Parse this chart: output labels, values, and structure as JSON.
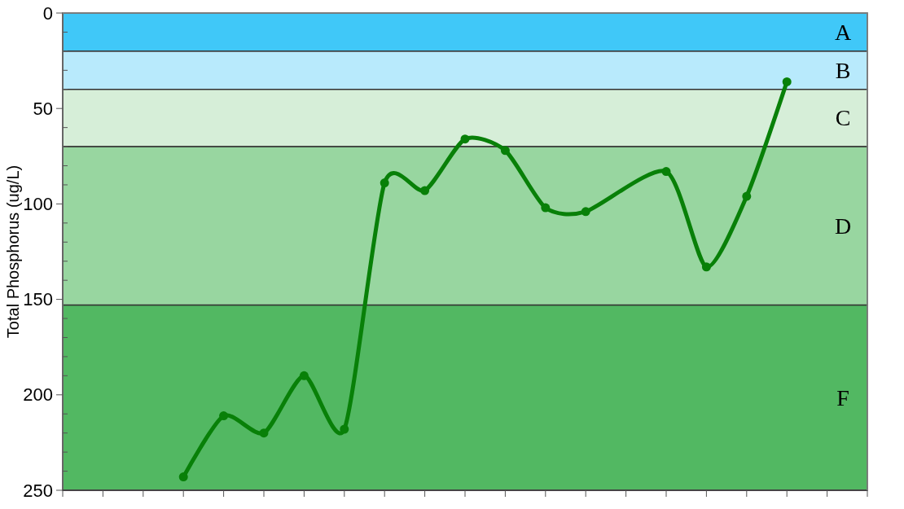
{
  "chart_data": {
    "type": "line",
    "ylabel": "Total Phosphorus (ug/L)",
    "categories": [
      null,
      null,
      null,
      null,
      null,
      null,
      null,
      null,
      null,
      null,
      null,
      null,
      null,
      null,
      null,
      null,
      null,
      null,
      null,
      null,
      null
    ],
    "series": [
      {
        "color": "#088008",
        "values": [
          null,
          null,
          null,
          243,
          211,
          220,
          190,
          218,
          89,
          93,
          66,
          72,
          102,
          104,
          null,
          83,
          133,
          96,
          36,
          null,
          null
        ]
      }
    ],
    "ylim": [
      250,
      0
    ],
    "yticks": [
      0,
      {
        "value": 10,
        "label": null
      },
      {
        "value": 20,
        "label": null
      },
      {
        "value": 30,
        "label": null
      },
      {
        "value": 40,
        "label": null
      },
      50,
      {
        "value": 60,
        "label": null
      },
      {
        "value": 70,
        "label": null
      },
      {
        "value": 80,
        "label": null
      },
      {
        "value": 90,
        "label": null
      },
      100,
      {
        "value": 110,
        "label": null
      },
      {
        "value": 120,
        "label": null
      },
      {
        "value": 130,
        "label": null
      },
      {
        "value": 140,
        "label": null
      },
      150,
      {
        "value": 160,
        "label": null
      },
      {
        "value": 170,
        "label": null
      },
      {
        "value": 180,
        "label": null
      },
      {
        "value": 190,
        "label": null
      },
      200,
      {
        "value": 210,
        "label": null
      },
      {
        "value": 220,
        "label": null
      },
      {
        "value": 230,
        "label": null
      },
      {
        "value": 240,
        "label": null
      },
      250
    ],
    "bands": [
      {
        "axis": "y",
        "from": 0,
        "to": 20,
        "label": "A",
        "color": "#40c8f8"
      },
      {
        "axis": "y",
        "from": 20,
        "to": 40,
        "label": "B",
        "color": "#b8eafc"
      },
      {
        "axis": "y",
        "from": 40,
        "to": 70,
        "label": "C",
        "color": "#d6eed8"
      },
      {
        "axis": "y",
        "from": 70,
        "to": 153,
        "label": "D",
        "color": "#98d6a0"
      },
      {
        "axis": "y",
        "from": 153,
        "to": 250,
        "label": "F",
        "color": "#52b862"
      }
    ],
    "marker": "circle",
    "line_style": "solid"
  }
}
